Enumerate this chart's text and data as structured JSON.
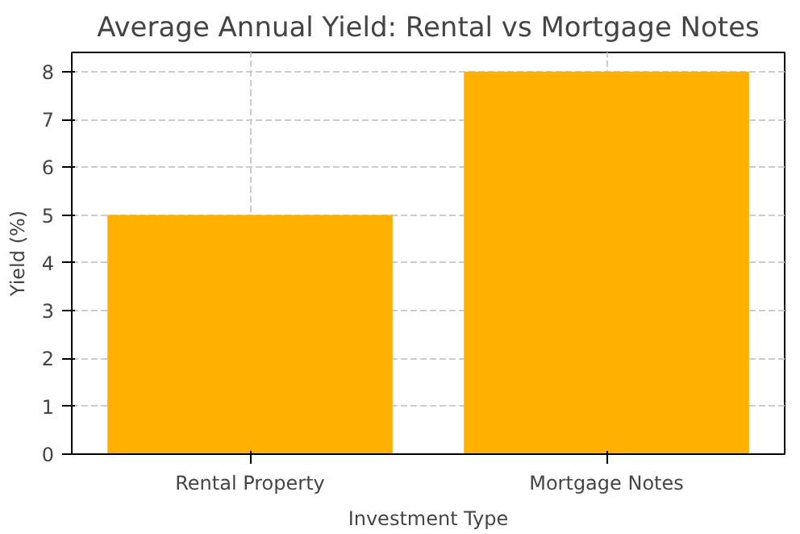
{
  "chart_data": {
    "type": "bar",
    "title": "Average Annual Yield: Rental vs Mortgage Notes",
    "xlabel": "Investment Type",
    "ylabel": "Yield (%)",
    "categories": [
      "Rental Property",
      "Mortgage Notes"
    ],
    "values": [
      5,
      8
    ],
    "color": "#ffb000",
    "ylim": [
      0,
      8.4
    ],
    "yticks": [
      0,
      1,
      2,
      3,
      4,
      5,
      6,
      7,
      8
    ],
    "grid": true
  }
}
